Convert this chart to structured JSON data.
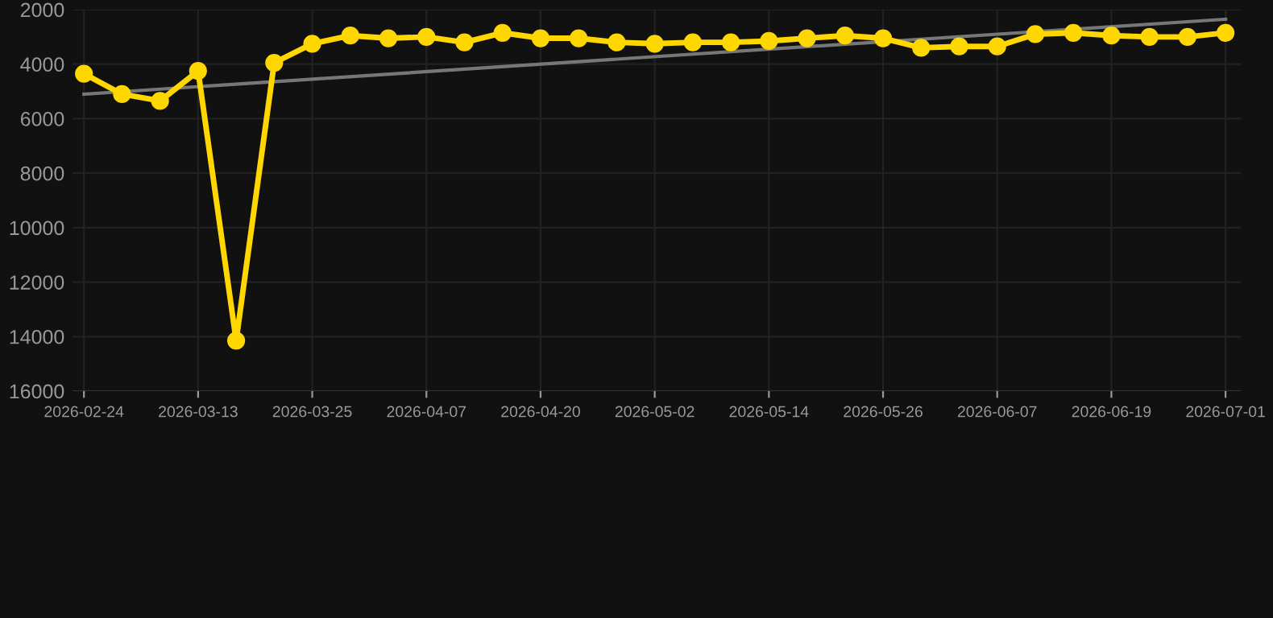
{
  "chart_data": {
    "type": "line",
    "categories": [
      "2026-02-24",
      null,
      null,
      "2026-03-13",
      null,
      null,
      "2026-03-25",
      null,
      null,
      "2026-04-07",
      null,
      null,
      "2026-04-20",
      null,
      null,
      "2026-05-02",
      null,
      null,
      "2026-05-14",
      null,
      null,
      "2026-05-26",
      null,
      null,
      "2026-06-07",
      null,
      null,
      "2026-06-19",
      null,
      null,
      "2026-07-01"
    ],
    "series": [
      {
        "color": "#ffd700",
        "marker": "circle",
        "values": [
          4350,
          5100,
          5350,
          4250,
          14150,
          3950,
          3250,
          2950,
          3050,
          3000,
          3200,
          2850,
          3050,
          3050,
          3200,
          3250,
          3200,
          3200,
          3150,
          3050,
          2950,
          3050,
          3400,
          3350,
          3350,
          2900,
          2850,
          2950,
          3000,
          3000,
          2850
        ]
      },
      {
        "color": "#777777",
        "marker": "none",
        "values": [
          5100,
          null,
          null,
          null,
          null,
          null,
          null,
          null,
          null,
          null,
          null,
          null,
          null,
          null,
          null,
          null,
          null,
          null,
          null,
          null,
          null,
          null,
          null,
          null,
          null,
          null,
          null,
          null,
          null,
          null,
          2350
        ]
      }
    ],
    "ylim": [
      16000,
      2000
    ],
    "yticks": [
      2000,
      4000,
      6000,
      8000,
      10000,
      12000,
      14000,
      16000
    ],
    "grid": true,
    "line_style": "solid"
  }
}
